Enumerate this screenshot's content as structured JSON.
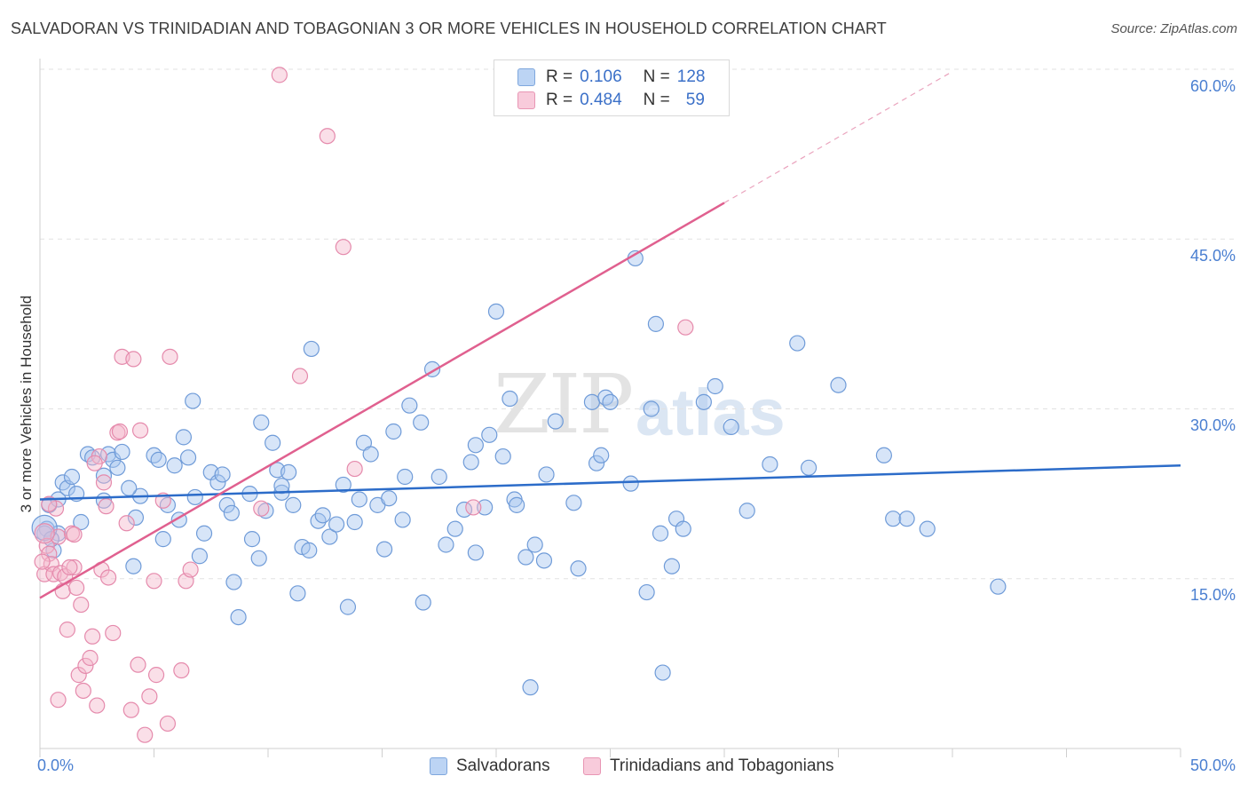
{
  "header": {
    "title": "SALVADORAN VS TRINIDADIAN AND TOBAGONIAN 3 OR MORE VEHICLES IN HOUSEHOLD CORRELATION CHART",
    "source": "Source: ZipAtlas.com"
  },
  "legend_top": {
    "rows": [
      {
        "r_label": "R =",
        "r_value": "0.106",
        "n_label": "N =",
        "n_value": "128",
        "color": "#a7c5ef"
      },
      {
        "r_label": "R =",
        "r_value": "0.484",
        "n_label": "N =",
        "n_value": "59",
        "color": "#f4b7cc"
      }
    ]
  },
  "legend_bottom": {
    "items": [
      {
        "label": "Salvadorans",
        "color": "#a7c5ef"
      },
      {
        "label": "Trinidadians and Tobagonians",
        "color": "#f4b7cc"
      }
    ]
  },
  "watermark": {
    "zip": "ZIP",
    "atlas": "atlas"
  },
  "chart_data": {
    "type": "scatter",
    "title": "SALVADORAN VS TRINIDADIAN AND TOBAGONIAN 3 OR MORE VEHICLES IN HOUSEHOLD CORRELATION CHART",
    "xlabel": "",
    "ylabel": "3 or more Vehicles in Household",
    "xlim": [
      0,
      50
    ],
    "ylim": [
      0,
      60
    ],
    "x_tick_labels": [
      "0.0%",
      "50.0%"
    ],
    "y_ticks": [
      15,
      30,
      45,
      60
    ],
    "y_tick_labels": [
      "15.0%",
      "30.0%",
      "45.0%",
      "60.0%"
    ],
    "grid": true,
    "series": [
      {
        "name": "Salvadorans",
        "color": "#a7c5ef",
        "stroke": "#6f9bd8",
        "trend": {
          "x0": 0,
          "y0": 22.0,
          "x1": 50,
          "y1": 25.0,
          "color": "#2c6cc9"
        },
        "points": [
          [
            0.3,
            19.4
          ],
          [
            0.4,
            21.5
          ],
          [
            0.6,
            17.5
          ],
          [
            0.8,
            19.0
          ],
          [
            0.8,
            22.0
          ],
          [
            1.0,
            23.5
          ],
          [
            1.2,
            23.0
          ],
          [
            1.4,
            24.0
          ],
          [
            1.6,
            22.5
          ],
          [
            2.1,
            26.0
          ],
          [
            2.3,
            25.7
          ],
          [
            2.8,
            21.9
          ],
          [
            2.8,
            24.1
          ],
          [
            3.0,
            26.0
          ],
          [
            3.2,
            25.5
          ],
          [
            3.4,
            24.8
          ],
          [
            3.6,
            26.2
          ],
          [
            4.1,
            16.1
          ],
          [
            4.2,
            20.4
          ],
          [
            4.4,
            22.3
          ],
          [
            5.0,
            25.9
          ],
          [
            5.2,
            25.5
          ],
          [
            5.4,
            18.5
          ],
          [
            5.6,
            21.5
          ],
          [
            5.9,
            25.0
          ],
          [
            6.1,
            20.2
          ],
          [
            6.3,
            27.5
          ],
          [
            6.5,
            25.7
          ],
          [
            6.7,
            30.7
          ],
          [
            6.8,
            22.2
          ],
          [
            7.0,
            17.0
          ],
          [
            7.2,
            19.0
          ],
          [
            7.5,
            24.4
          ],
          [
            7.8,
            23.5
          ],
          [
            8.0,
            24.2
          ],
          [
            8.2,
            21.5
          ],
          [
            8.4,
            20.8
          ],
          [
            8.5,
            14.7
          ],
          [
            8.7,
            11.6
          ],
          [
            9.2,
            22.5
          ],
          [
            9.3,
            18.5
          ],
          [
            9.6,
            16.8
          ],
          [
            9.7,
            28.8
          ],
          [
            10.2,
            27.0
          ],
          [
            10.4,
            24.6
          ],
          [
            10.6,
            22.6
          ],
          [
            10.6,
            23.2
          ],
          [
            10.9,
            24.4
          ],
          [
            11.1,
            21.5
          ],
          [
            11.3,
            13.7
          ],
          [
            11.5,
            17.8
          ],
          [
            11.8,
            17.5
          ],
          [
            11.9,
            35.3
          ],
          [
            12.2,
            20.1
          ],
          [
            12.4,
            20.6
          ],
          [
            12.7,
            18.7
          ],
          [
            13.0,
            19.8
          ],
          [
            13.3,
            23.3
          ],
          [
            13.5,
            12.5
          ],
          [
            13.8,
            20.0
          ],
          [
            14.0,
            22.0
          ],
          [
            14.2,
            27.0
          ],
          [
            14.5,
            26.0
          ],
          [
            14.8,
            21.5
          ],
          [
            15.1,
            17.6
          ],
          [
            15.3,
            22.1
          ],
          [
            15.5,
            28.0
          ],
          [
            15.9,
            20.2
          ],
          [
            16.2,
            30.3
          ],
          [
            16.7,
            28.8
          ],
          [
            16.8,
            12.9
          ],
          [
            17.2,
            33.5
          ],
          [
            17.5,
            24.0
          ],
          [
            17.8,
            18.0
          ],
          [
            18.2,
            19.4
          ],
          [
            18.6,
            21.1
          ],
          [
            18.9,
            25.3
          ],
          [
            19.1,
            26.8
          ],
          [
            19.1,
            17.3
          ],
          [
            19.7,
            27.7
          ],
          [
            19.5,
            21.3
          ],
          [
            20.0,
            38.6
          ],
          [
            20.3,
            25.8
          ],
          [
            20.6,
            30.9
          ],
          [
            20.8,
            22.0
          ],
          [
            20.9,
            21.5
          ],
          [
            21.3,
            16.9
          ],
          [
            21.5,
            5.4
          ],
          [
            21.7,
            18.0
          ],
          [
            22.1,
            16.6
          ],
          [
            22.2,
            24.2
          ],
          [
            22.6,
            28.9
          ],
          [
            23.4,
            21.7
          ],
          [
            23.6,
            15.9
          ],
          [
            24.2,
            30.6
          ],
          [
            24.4,
            25.2
          ],
          [
            24.6,
            25.9
          ],
          [
            24.8,
            31.0
          ],
          [
            25.0,
            30.6
          ],
          [
            25.9,
            23.4
          ],
          [
            26.1,
            43.3
          ],
          [
            26.6,
            13.8
          ],
          [
            26.8,
            30.0
          ],
          [
            27.0,
            37.5
          ],
          [
            27.2,
            19.0
          ],
          [
            27.3,
            6.7
          ],
          [
            27.7,
            16.1
          ],
          [
            27.9,
            20.3
          ],
          [
            28.2,
            19.4
          ],
          [
            29.1,
            30.6
          ],
          [
            29.6,
            32.0
          ],
          [
            30.3,
            28.4
          ],
          [
            31.0,
            21.0
          ],
          [
            32.0,
            25.1
          ],
          [
            33.2,
            35.8
          ],
          [
            33.7,
            24.8
          ],
          [
            35.0,
            32.1
          ],
          [
            37.0,
            25.9
          ],
          [
            37.4,
            20.3
          ],
          [
            38.0,
            20.3
          ],
          [
            38.9,
            19.4
          ],
          [
            42.0,
            14.3
          ],
          [
            0.2,
            19.0
          ],
          [
            0.5,
            18.5
          ],
          [
            1.8,
            20.0
          ],
          [
            3.9,
            23.0
          ],
          [
            9.9,
            21.0
          ],
          [
            16.0,
            24.0
          ]
        ]
      },
      {
        "name": "Trinidadians and Tobagonians",
        "color": "#f4b7cc",
        "stroke": "#e58aac",
        "trend": {
          "x0": 0,
          "y0": 13.3,
          "x1": 30,
          "y1": 48.2,
          "dash_to_x": 40,
          "dash_to_y": 59.8,
          "color": "#e0608f"
        },
        "points": [
          [
            0.2,
            15.4
          ],
          [
            0.3,
            17.9
          ],
          [
            0.4,
            17.2
          ],
          [
            0.5,
            16.3
          ],
          [
            0.6,
            15.4
          ],
          [
            0.7,
            21.2
          ],
          [
            0.8,
            18.7
          ],
          [
            0.9,
            15.5
          ],
          [
            1.0,
            13.9
          ],
          [
            1.1,
            15.2
          ],
          [
            1.2,
            10.5
          ],
          [
            1.4,
            19.0
          ],
          [
            1.5,
            16.0
          ],
          [
            1.6,
            14.2
          ],
          [
            1.7,
            6.5
          ],
          [
            1.8,
            12.7
          ],
          [
            1.9,
            5.1
          ],
          [
            2.0,
            7.3
          ],
          [
            2.2,
            8.0
          ],
          [
            2.3,
            9.9
          ],
          [
            2.5,
            3.8
          ],
          [
            2.6,
            25.8
          ],
          [
            2.7,
            15.8
          ],
          [
            2.9,
            21.4
          ],
          [
            3.0,
            15.1
          ],
          [
            3.2,
            10.2
          ],
          [
            3.4,
            27.9
          ],
          [
            3.6,
            34.6
          ],
          [
            3.8,
            19.9
          ],
          [
            4.0,
            3.4
          ],
          [
            4.1,
            34.4
          ],
          [
            4.3,
            7.4
          ],
          [
            4.6,
            1.2
          ],
          [
            4.8,
            4.6
          ],
          [
            5.0,
            14.8
          ],
          [
            5.1,
            6.5
          ],
          [
            5.4,
            21.9
          ],
          [
            5.6,
            2.2
          ],
          [
            5.7,
            34.6
          ],
          [
            6.2,
            6.9
          ],
          [
            6.4,
            14.8
          ],
          [
            6.6,
            15.8
          ],
          [
            9.7,
            21.2
          ],
          [
            10.5,
            59.5
          ],
          [
            11.4,
            32.9
          ],
          [
            12.6,
            54.1
          ],
          [
            13.3,
            44.3
          ],
          [
            13.8,
            24.7
          ],
          [
            19.0,
            21.3
          ],
          [
            28.3,
            37.2
          ],
          [
            0.1,
            16.5
          ],
          [
            0.4,
            21.6
          ],
          [
            0.8,
            4.3
          ],
          [
            1.3,
            16.0
          ],
          [
            2.4,
            25.2
          ],
          [
            2.8,
            23.5
          ],
          [
            3.5,
            28.0
          ],
          [
            4.4,
            28.1
          ],
          [
            1.5,
            18.9
          ]
        ]
      }
    ]
  }
}
